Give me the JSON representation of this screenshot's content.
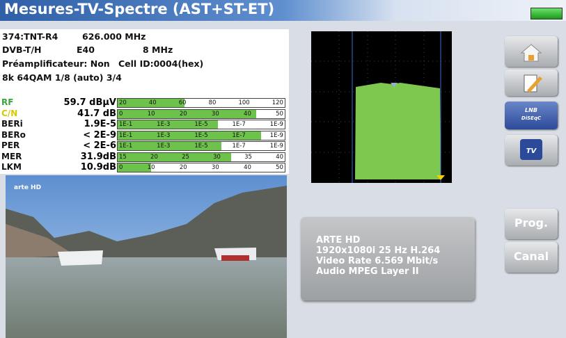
{
  "header": {
    "title": "Mesures-TV-Spectre (AST+ST-ET)"
  },
  "info": {
    "channel": "374:TNT-R4",
    "frequency": "626.000 MHz",
    "standard": "DVB-T/H",
    "channel_name": "E40",
    "bandwidth": "8 MHz",
    "preamp": "Préamplificateur: Non",
    "cell_id": "Cell ID:0004(hex)",
    "modulation": "8k 64QAM 1/8 (auto) 3/4"
  },
  "measurements": [
    {
      "label": "RF",
      "value": "59.7 dBµV",
      "scale": [
        "20",
        "40",
        "60",
        "80",
        "100",
        "120"
      ]
    },
    {
      "label": "C/N",
      "value": "41.7 dB",
      "scale": [
        "0",
        "10",
        "20",
        "30",
        "40",
        "50"
      ]
    },
    {
      "label": "BERi",
      "value": "1.9E-5",
      "scale": [
        "1E-1",
        "1E-3",
        "1E-5",
        "1E-7",
        "1E-9"
      ]
    },
    {
      "label": "BERo",
      "value": "< 2E-9",
      "scale": [
        "1E-1",
        "1E-3",
        "1E-5",
        "1E-7",
        "1E-9"
      ]
    },
    {
      "label": "PER",
      "value": "< 2E-6",
      "scale": [
        "1E-1",
        "1E-3",
        "1E-5",
        "1E-7",
        "1E-9"
      ]
    },
    {
      "label": "MER",
      "value": "31.9dB",
      "scale": [
        "15",
        "20",
        "25",
        "30",
        "35",
        "40"
      ]
    },
    {
      "label": "LKM",
      "value": "10.9dB",
      "scale": [
        "0",
        "10",
        "20",
        "30",
        "40",
        "50"
      ]
    }
  ],
  "video": {
    "logo": "arte HD"
  },
  "service": {
    "lines": [
      "ARTE HD",
      "1920x1080i 25 Hz H.264",
      "Video Rate 6.569 Mbit/s",
      "Audio MPEG Layer II"
    ]
  },
  "buttons": {
    "lnb": "LNB",
    "diseqc": "DiSEqC",
    "tv": "TV",
    "prog": "Prog.",
    "canal": "Canal"
  }
}
